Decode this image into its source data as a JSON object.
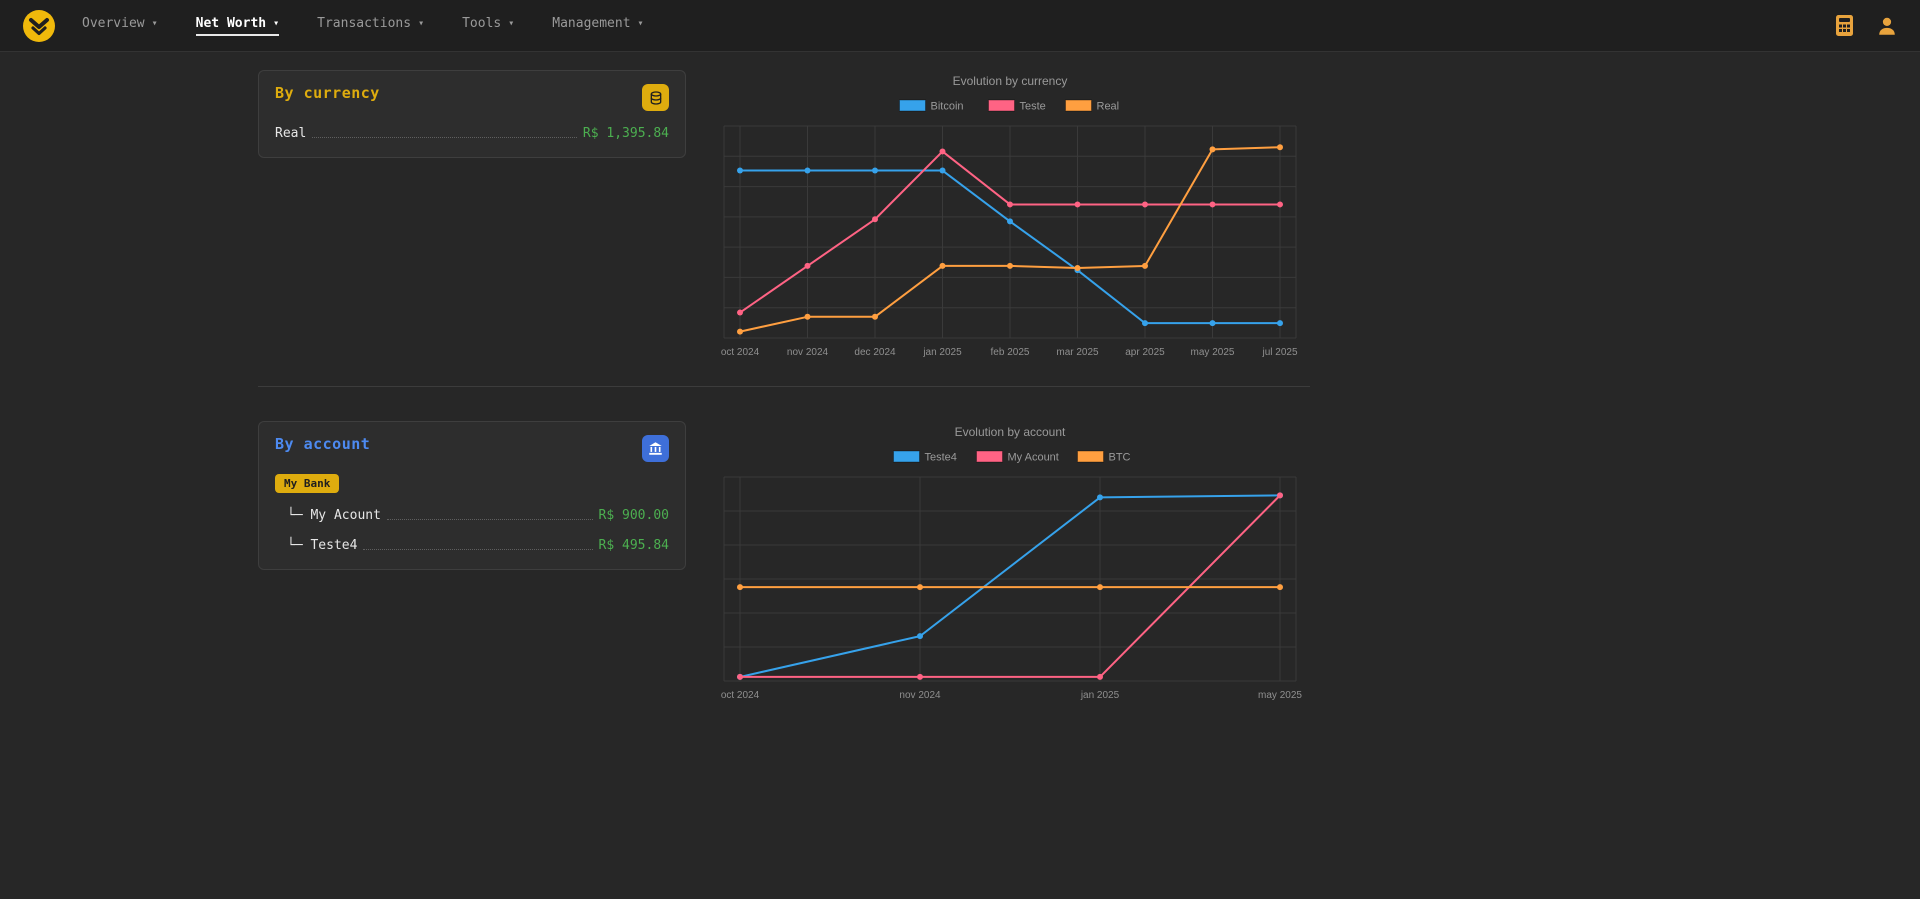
{
  "nav": {
    "caret": "▾",
    "items": [
      {
        "label": "Overview",
        "active": false
      },
      {
        "label": "Net Worth",
        "active": true
      },
      {
        "label": "Transactions",
        "active": false
      },
      {
        "label": "Tools",
        "active": false
      },
      {
        "label": "Management",
        "active": false
      }
    ],
    "icons": [
      "app-logo",
      "calculator-icon",
      "user-icon"
    ]
  },
  "colors": {
    "accent_yellow": "#deac0e",
    "accent_blue": "#4d8af0",
    "money_green": "#4caf50",
    "chart_blue": "#36a2eb",
    "chart_pink": "#ff6384",
    "chart_orange": "#ff9f40"
  },
  "currency_card": {
    "title": "By currency",
    "icon": "coins-icon",
    "rows": [
      {
        "label": "Real",
        "value": "R$ 1,395.84"
      }
    ]
  },
  "account_card": {
    "title": "By account",
    "icon": "bank-icon",
    "badge": "My Bank",
    "rows": [
      {
        "label": "└─ My Acount",
        "value": "R$ 900.00"
      },
      {
        "label": "└─ Teste4",
        "value": "R$ 495.84"
      }
    ]
  },
  "chart_data": [
    {
      "type": "line",
      "title": "Evolution by currency",
      "x": [
        "oct 2024",
        "nov 2024",
        "dec 2024",
        "jan 2025",
        "feb 2025",
        "mar 2025",
        "apr 2025",
        "may 2025",
        "jul 2025"
      ],
      "series": [
        {
          "name": "Bitcoin",
          "color": "#36a2eb",
          "values": [
            79,
            79,
            79,
            79,
            55,
            32,
            7,
            7,
            7
          ]
        },
        {
          "name": "Teste",
          "color": "#ff6384",
          "values": [
            12,
            34,
            56,
            88,
            63,
            63,
            63,
            63,
            63
          ]
        },
        {
          "name": "Real",
          "color": "#ff9f40",
          "values": [
            3,
            10,
            10,
            34,
            34,
            33,
            34,
            89,
            90
          ]
        }
      ],
      "ylim": [
        0,
        100
      ],
      "grid": true,
      "grid_rows": 7,
      "legend_position": "top"
    },
    {
      "type": "line",
      "title": "Evolution by account",
      "x": [
        "oct 2024",
        "nov 2024",
        "jan 2025",
        "may 2025"
      ],
      "series": [
        {
          "name": "Teste4",
          "color": "#36a2eb",
          "values": [
            2,
            22,
            90,
            91
          ]
        },
        {
          "name": "My Acount",
          "color": "#ff6384",
          "values": [
            2,
            2,
            2,
            91
          ]
        },
        {
          "name": "BTC",
          "color": "#ff9f40",
          "values": [
            46,
            46,
            46,
            46
          ]
        }
      ],
      "ylim": [
        0,
        100
      ],
      "grid": true,
      "grid_rows": 6,
      "legend_position": "top"
    }
  ]
}
